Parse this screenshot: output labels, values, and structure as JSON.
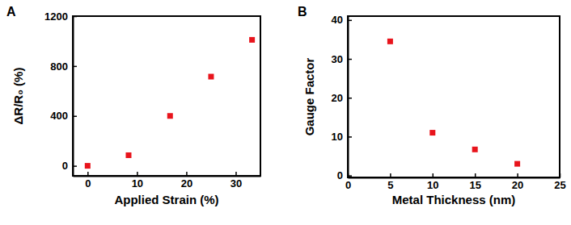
{
  "chart_data": [
    {
      "type": "scatter",
      "title": "A",
      "x_label": "Applied Strain (%)",
      "y_label": "ΔR/R₀ (%)",
      "x": [
        0,
        8.3,
        16.7,
        25,
        33.3
      ],
      "values": [
        0,
        85,
        400,
        715,
        1010
      ],
      "color": "#e8141c",
      "marker": "square",
      "xlim": [
        -3,
        35
      ],
      "xticks": [
        0,
        10,
        20,
        30
      ],
      "ylim": [
        -80,
        1200
      ],
      "yticks": [
        0,
        400,
        800,
        1200
      ],
      "grid": false
    },
    {
      "type": "scatter",
      "title": "B",
      "x_label": "Metal Thickness (nm)",
      "y_label": "Gauge Factor",
      "x": [
        5,
        10,
        15,
        20
      ],
      "values": [
        34.5,
        11,
        6.7,
        3
      ],
      "color": "#e8141c",
      "marker": "square",
      "xlim": [
        0,
        25
      ],
      "xticks": [
        0,
        5,
        10,
        15,
        20,
        25
      ],
      "ylim": [
        -0.5,
        41
      ],
      "yticks": [
        0,
        10,
        20,
        30,
        40
      ],
      "grid": false
    }
  ]
}
